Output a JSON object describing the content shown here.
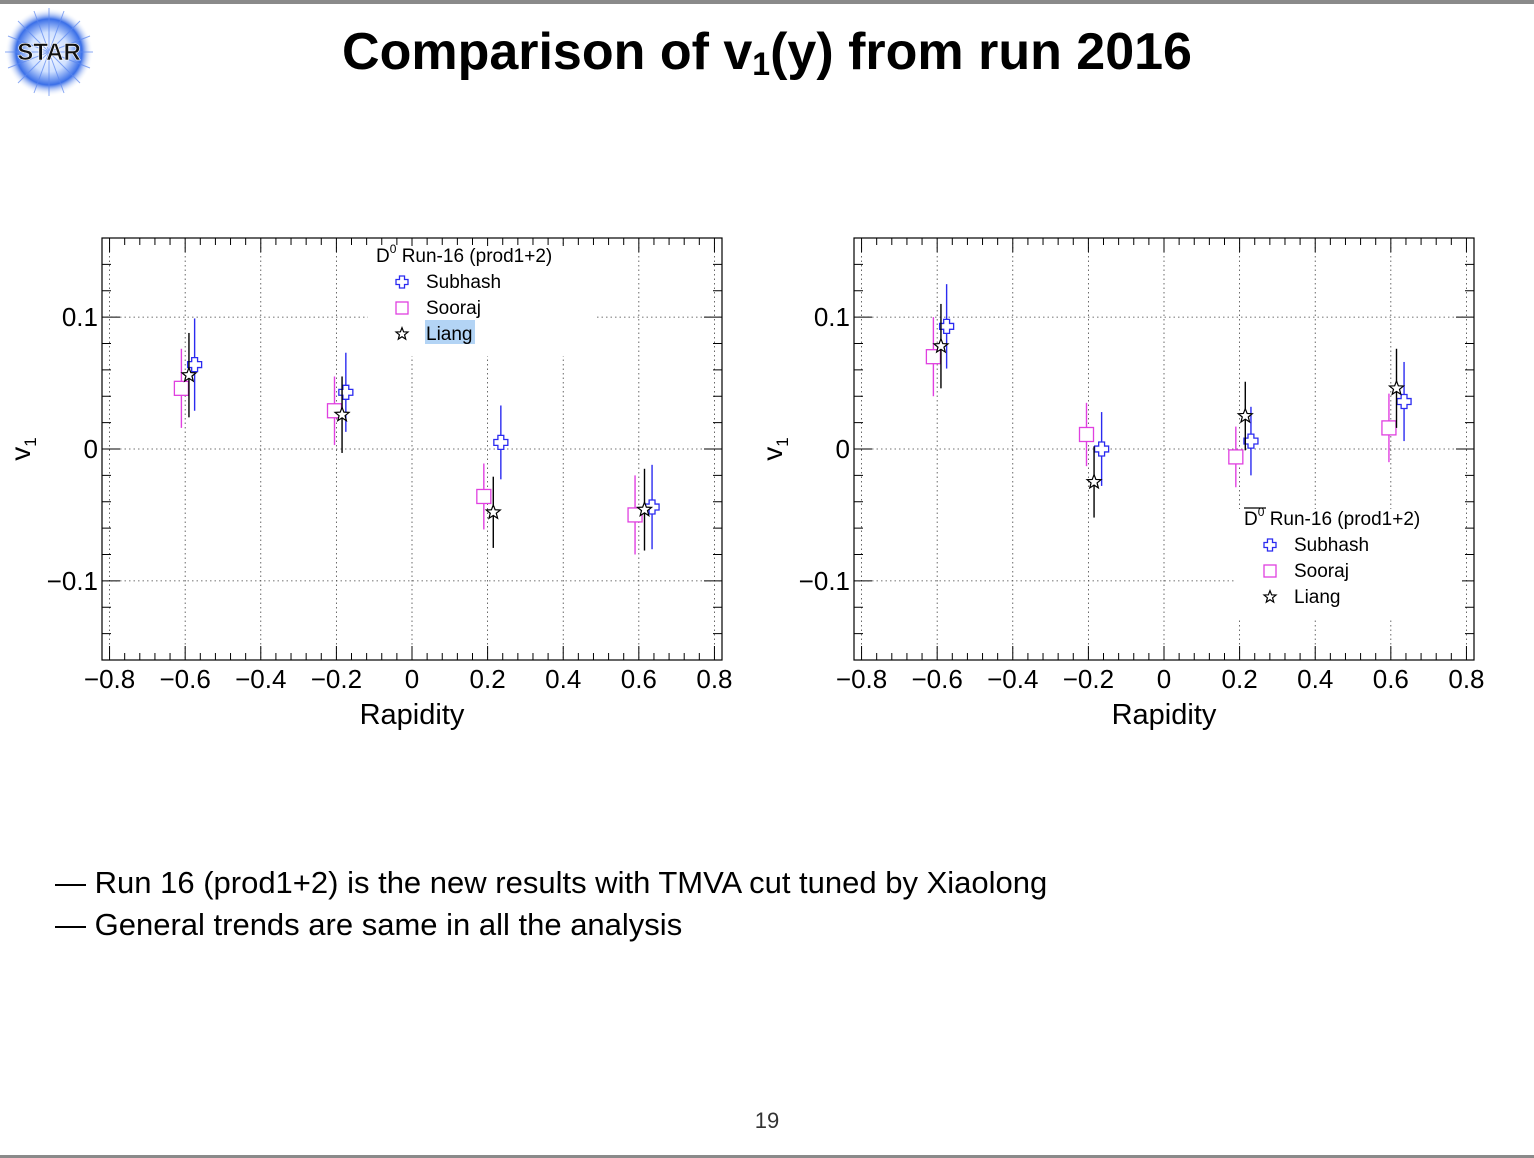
{
  "slide": {
    "title_main": "Comparison of v",
    "title_sub": "1",
    "title_rest": "(y) from run 2016",
    "logo_text": "STAR",
    "bullets": [
      "— Run 16 (prod1+2) is the new results with TMVA cut tuned by Xiaolong",
      "— General trends are same in all the analysis"
    ],
    "page_number": "19"
  },
  "colors": {
    "subhash": "#2b2bf0",
    "sooraj": "#e040e0",
    "liang": "#000000",
    "highlight": "#b3d4f5",
    "logo_glow": "#3a6fe8"
  },
  "icons": {
    "subhash_marker": "open-cross",
    "sooraj_marker": "open-square",
    "liang_marker": "open-star"
  },
  "chart_data": [
    {
      "type": "scatter",
      "xlabel": "Rapidity",
      "ylabel": "v",
      "ylabel_sub": "1",
      "xlim": [
        -0.82,
        0.82
      ],
      "ylim": [
        -0.16,
        0.16
      ],
      "xticks": [
        "−0.8",
        "−0.6",
        "−0.4",
        "−0.2",
        "0",
        "0.2",
        "0.4",
        "0.6",
        "0.8"
      ],
      "xtick_values": [
        -0.8,
        -0.6,
        -0.4,
        -0.2,
        0,
        0.2,
        0.4,
        0.6,
        0.8
      ],
      "yticks": [
        "−0.1",
        "0",
        "0.1"
      ],
      "ytick_values": [
        -0.1,
        0,
        0.1
      ],
      "grid": true,
      "legend_position": "top-right",
      "legend_title": "D",
      "legend_title_sup": "0",
      "legend_title_rest": " Run-16 (prod1+2)",
      "legend_title_overline": false,
      "series": [
        {
          "name": "Subhash",
          "x": [
            -0.575,
            -0.175,
            0.235,
            0.635
          ],
          "y": [
            0.064,
            0.043,
            0.005,
            -0.044
          ],
          "err": [
            0.035,
            0.03,
            0.028,
            0.032
          ]
        },
        {
          "name": "Sooraj",
          "x": [
            -0.61,
            -0.205,
            0.19,
            0.59
          ],
          "y": [
            0.046,
            0.029,
            -0.036,
            -0.05
          ],
          "err": [
            0.03,
            0.026,
            0.025,
            0.03
          ]
        },
        {
          "name": "Liang",
          "x": [
            -0.59,
            -0.185,
            0.215,
            0.615
          ],
          "y": [
            0.056,
            0.026,
            -0.048,
            -0.046
          ],
          "err": [
            0.032,
            0.029,
            0.027,
            0.031
          ]
        }
      ]
    },
    {
      "type": "scatter",
      "xlabel": "Rapidity",
      "ylabel": "v",
      "ylabel_sub": "1",
      "xlim": [
        -0.82,
        0.82
      ],
      "ylim": [
        -0.16,
        0.16
      ],
      "xticks": [
        "−0.8",
        "−0.6",
        "−0.4",
        "−0.2",
        "0",
        "0.2",
        "0.4",
        "0.6",
        "0.8"
      ],
      "xtick_values": [
        -0.8,
        -0.6,
        -0.4,
        -0.2,
        0,
        0.2,
        0.4,
        0.6,
        0.8
      ],
      "yticks": [
        "−0.1",
        "0",
        "0.1"
      ],
      "ytick_values": [
        -0.1,
        0,
        0.1
      ],
      "grid": true,
      "legend_position": "bottom-right",
      "legend_title": "D",
      "legend_title_sup": "0",
      "legend_title_rest": " Run-16 (prod1+2)",
      "legend_title_overline": true,
      "series": [
        {
          "name": "Subhash",
          "x": [
            -0.575,
            -0.165,
            0.23,
            0.635
          ],
          "y": [
            0.093,
            0.0,
            0.006,
            0.036
          ],
          "err": [
            0.032,
            0.028,
            0.026,
            0.03
          ]
        },
        {
          "name": "Sooraj",
          "x": [
            -0.61,
            -0.205,
            0.19,
            0.595
          ],
          "y": [
            0.07,
            0.011,
            -0.006,
            0.016
          ],
          "err": [
            0.03,
            0.024,
            0.023,
            0.026
          ]
        },
        {
          "name": "Liang",
          "x": [
            -0.59,
            -0.185,
            0.215,
            0.615
          ],
          "y": [
            0.078,
            -0.025,
            0.025,
            0.046
          ],
          "err": [
            0.032,
            0.027,
            0.026,
            0.03
          ]
        }
      ]
    }
  ]
}
